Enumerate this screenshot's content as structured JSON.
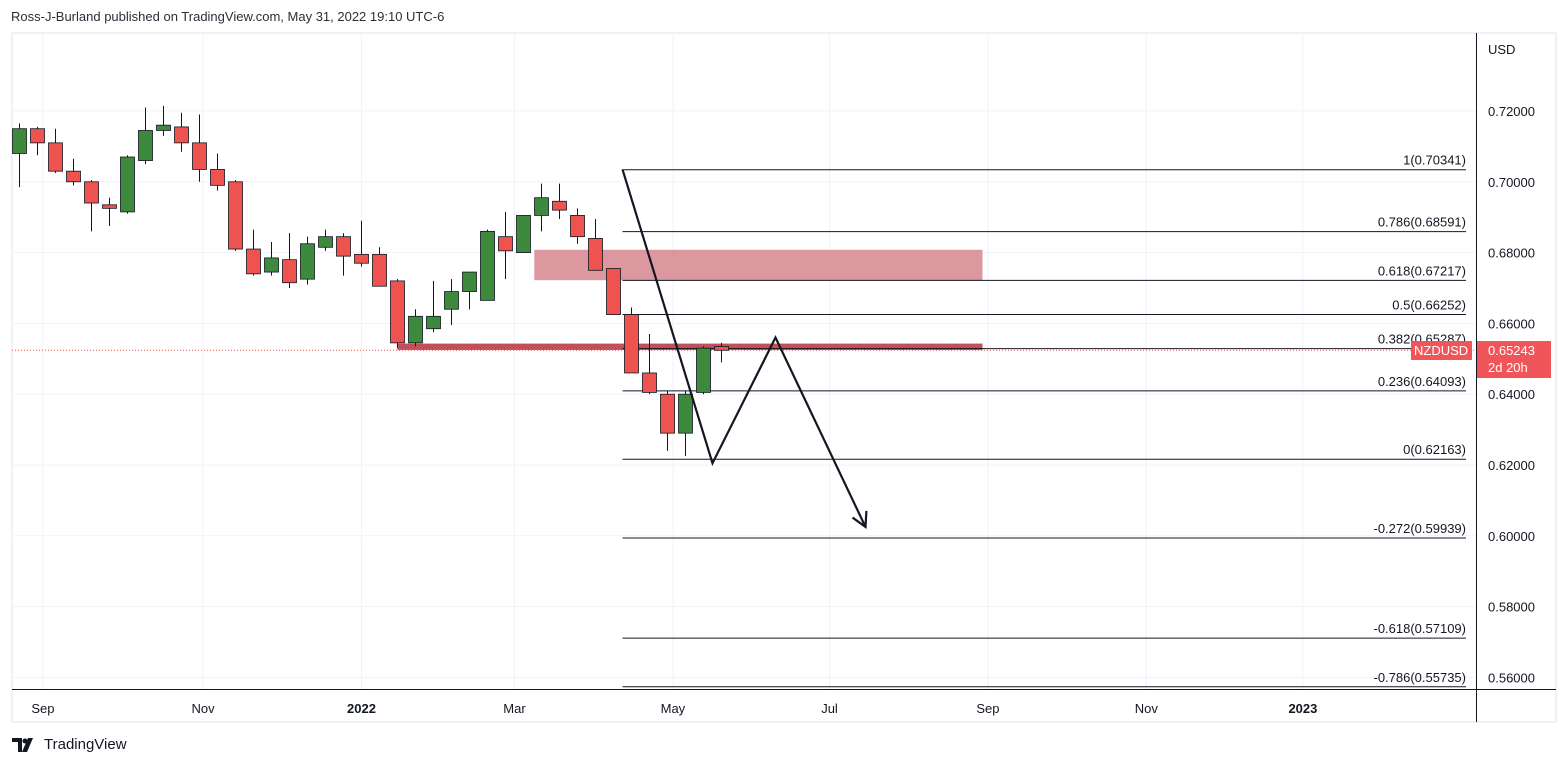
{
  "header": {
    "text": "Ross-J-Burland published on TradingView.com, May 31, 2022 19:10 UTC-6"
  },
  "footer": {
    "brand": "TradingView"
  },
  "colors": {
    "up": "#3d8a3d",
    "down": "#ef5350",
    "zone": "#d88c95",
    "sr_line": "#c0505a",
    "price_tag": "#f0555a"
  },
  "chart_data": {
    "type": "candlestick",
    "symbol": "NZDUSD",
    "currency": "USD",
    "timeframe": "weekly",
    "last_price": "0.65243",
    "countdown": "2d 20h",
    "y_ticks": [
      "0.72000",
      "0.70000",
      "0.68000",
      "0.66000",
      "0.64000",
      "0.62000",
      "0.60000",
      "0.58000",
      "0.56000"
    ],
    "y_tick_values": [
      0.72,
      0.7,
      0.68,
      0.66,
      0.64,
      0.62,
      0.6,
      0.58,
      0.56
    ],
    "x_ticks": [
      {
        "label": "Sep",
        "bar": 1.3,
        "bold": false
      },
      {
        "label": "Nov",
        "bar": 10.2,
        "bold": false
      },
      {
        "label": "2022",
        "bar": 19.0,
        "bold": true
      },
      {
        "label": "Mar",
        "bar": 27.5,
        "bold": false
      },
      {
        "label": "May",
        "bar": 36.3,
        "bold": false
      },
      {
        "label": "Jul",
        "bar": 45.0,
        "bold": false
      },
      {
        "label": "Sep",
        "bar": 53.8,
        "bold": false
      },
      {
        "label": "Nov",
        "bar": 62.6,
        "bold": false
      },
      {
        "label": "2023",
        "bar": 71.3,
        "bold": true
      }
    ],
    "candles": [
      [
        0.708,
        0.7165,
        0.6985,
        0.715
      ],
      [
        0.715,
        0.7155,
        0.7075,
        0.711
      ],
      [
        0.711,
        0.715,
        0.7025,
        0.703
      ],
      [
        0.703,
        0.7065,
        0.699,
        0.7
      ],
      [
        0.7,
        0.7005,
        0.686,
        0.694
      ],
      [
        0.6935,
        0.6955,
        0.6875,
        0.6925
      ],
      [
        0.6915,
        0.7075,
        0.691,
        0.707
      ],
      [
        0.706,
        0.721,
        0.705,
        0.7145
      ],
      [
        0.7145,
        0.7215,
        0.713,
        0.716
      ],
      [
        0.7155,
        0.7195,
        0.7085,
        0.711
      ],
      [
        0.711,
        0.719,
        0.7,
        0.7035
      ],
      [
        0.7035,
        0.708,
        0.6975,
        0.699
      ],
      [
        0.7,
        0.7005,
        0.6805,
        0.681
      ],
      [
        0.681,
        0.6865,
        0.6735,
        0.674
      ],
      [
        0.6745,
        0.683,
        0.6735,
        0.6785
      ],
      [
        0.678,
        0.6855,
        0.67,
        0.6715
      ],
      [
        0.6725,
        0.6845,
        0.671,
        0.6825
      ],
      [
        0.6815,
        0.6865,
        0.6805,
        0.6845
      ],
      [
        0.6845,
        0.6855,
        0.6735,
        0.679
      ],
      [
        0.6795,
        0.689,
        0.676,
        0.677
      ],
      [
        0.6795,
        0.6815,
        0.6705,
        0.6705
      ],
      [
        0.672,
        0.6725,
        0.653,
        0.6545
      ],
      [
        0.6545,
        0.664,
        0.6535,
        0.662
      ],
      [
        0.6585,
        0.672,
        0.6575,
        0.662
      ],
      [
        0.664,
        0.6725,
        0.6595,
        0.669
      ],
      [
        0.669,
        0.6745,
        0.664,
        0.6745
      ],
      [
        0.6665,
        0.6865,
        0.6665,
        0.686
      ],
      [
        0.6845,
        0.6915,
        0.6725,
        0.6805
      ],
      [
        0.68,
        0.6905,
        0.68,
        0.6905
      ],
      [
        0.6905,
        0.6995,
        0.686,
        0.6955
      ],
      [
        0.6945,
        0.6995,
        0.6895,
        0.692
      ],
      [
        0.6905,
        0.6925,
        0.6825,
        0.6845
      ],
      [
        0.684,
        0.6895,
        0.6755,
        0.675
      ],
      [
        0.6755,
        0.6755,
        0.6625,
        0.6625
      ],
      [
        0.6625,
        0.6645,
        0.646,
        0.646
      ],
      [
        0.646,
        0.657,
        0.64,
        0.6405
      ],
      [
        0.64,
        0.641,
        0.624,
        0.629
      ],
      [
        0.629,
        0.641,
        0.6225,
        0.64
      ],
      [
        0.6405,
        0.6535,
        0.64,
        0.653
      ],
      [
        0.6535,
        0.6545,
        0.649,
        0.6524
      ]
    ],
    "fibonacci": [
      {
        "label": "1(0.70341)",
        "value": 0.70341
      },
      {
        "label": "0.786(0.68591)",
        "value": 0.68591
      },
      {
        "label": "0.618(0.67217)",
        "value": 0.67217
      },
      {
        "label": "0.5(0.66252)",
        "value": 0.66252
      },
      {
        "label": "0.382(0.65287)",
        "value": 0.65287
      },
      {
        "label": "0.236(0.64093)",
        "value": 0.64093
      },
      {
        "label": "0(0.62163)",
        "value": 0.62163
      },
      {
        "label": "-0.272(0.59939)",
        "value": 0.59939
      },
      {
        "label": "-0.618(0.57109)",
        "value": 0.57109
      },
      {
        "label": "-0.786(0.55735)",
        "value": 0.55735
      }
    ],
    "fib_start_bar": 33.5,
    "fib_end_bar": 81.5,
    "zone": {
      "start_bar": 28.6,
      "end_bar": 53.5,
      "top": 0.6808,
      "bottom": 0.6722
    },
    "support_line": {
      "start_bar": 21.0,
      "end_bar": 53.5,
      "top": 0.6543,
      "bottom": 0.6525
    },
    "path": [
      [
        33.5,
        0.7035
      ],
      [
        38.5,
        0.6205
      ],
      [
        42.0,
        0.656
      ],
      [
        47.0,
        0.6025
      ]
    ]
  }
}
